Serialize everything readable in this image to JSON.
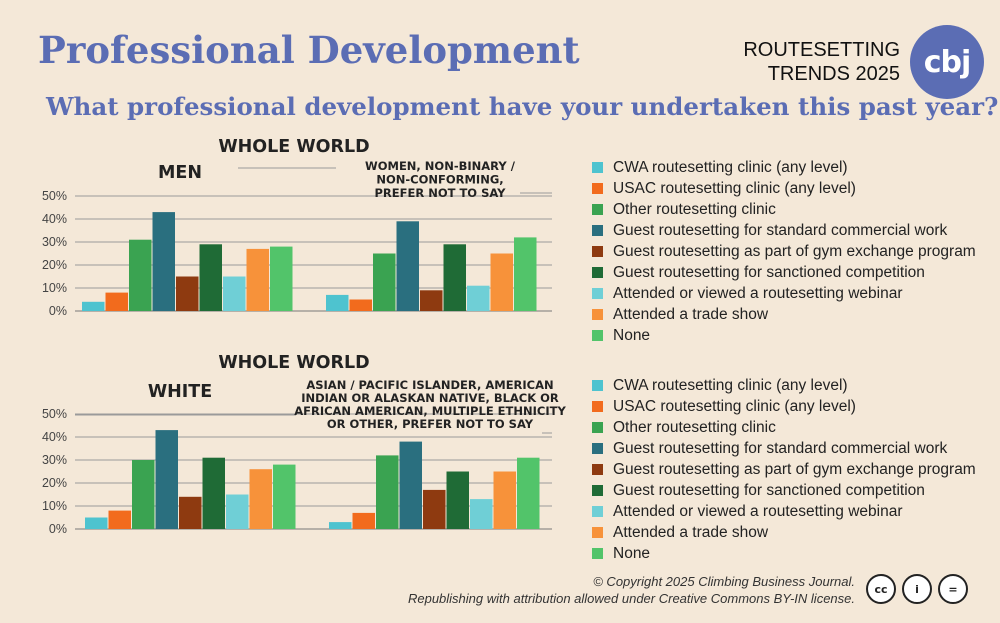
{
  "header": {
    "title": "Professional Development",
    "subtitle": "What professional development have your undertaken this past year?",
    "brand_line1": "ROUTESETTING",
    "brand_line2": "TRENDS 2025",
    "logo_text": "cbj"
  },
  "legend": {
    "items": [
      {
        "label": "CWA routesetting clinic (any level)",
        "color": "#4ec3cf"
      },
      {
        "label": "USAC routesetting clinic (any level)",
        "color": "#f26b1d"
      },
      {
        "label": "Other routesetting clinic",
        "color": "#3aa351"
      },
      {
        "label": "Guest routesetting for standard commercial work",
        "color": "#2a6f7f"
      },
      {
        "label": "Guest routesetting as part of gym exchange program",
        "color": "#8e3a10"
      },
      {
        "label": "Guest routesetting for sanctioned competition",
        "color": "#1f6b36"
      },
      {
        "label": "Attended or viewed a routesetting webinar",
        "color": "#6fcfd6"
      },
      {
        "label": "Attended a trade show",
        "color": "#f7923a"
      },
      {
        "label": "None",
        "color": "#52c46a"
      }
    ]
  },
  "chart_data": [
    {
      "type": "bar",
      "title": "WHOLE WORLD",
      "yticks": [
        "0%",
        "10%",
        "20%",
        "30%",
        "40%",
        "50%"
      ],
      "ylim": [
        0,
        50
      ],
      "categories": [
        "CWA routesetting clinic (any level)",
        "USAC routesetting clinic (any level)",
        "Other routesetting clinic",
        "Guest routesetting for standard commercial work",
        "Guest routesetting as part of gym exchange program",
        "Guest routesetting for sanctioned competition",
        "Attended or viewed a routesetting webinar",
        "Attended a trade show",
        "None"
      ],
      "groups": [
        {
          "label": "MEN",
          "values": [
            4,
            8,
            31,
            43,
            15,
            29,
            15,
            27,
            28
          ]
        },
        {
          "label": "WOMEN, NON-BINARY / NON-CONFORMING, PREFER NOT TO SAY",
          "values": [
            7,
            5,
            25,
            39,
            9,
            29,
            11,
            25,
            32
          ]
        }
      ]
    },
    {
      "type": "bar",
      "title": "WHOLE WORLD",
      "yticks": [
        "0%",
        "10%",
        "20%",
        "30%",
        "40%",
        "50%"
      ],
      "ylim": [
        0,
        50
      ],
      "categories": [
        "CWA routesetting clinic (any level)",
        "USAC routesetting clinic (any level)",
        "Other routesetting clinic",
        "Guest routesetting for standard commercial work",
        "Guest routesetting as part of gym exchange program",
        "Guest routesetting for sanctioned competition",
        "Attended or viewed a routesetting webinar",
        "Attended a trade show",
        "None"
      ],
      "groups": [
        {
          "label": "WHITE",
          "values": [
            5,
            8,
            30,
            43,
            14,
            31,
            15,
            26,
            28
          ]
        },
        {
          "label": "ASIAN / PACIFIC ISLANDER, AMERICAN INDIAN OR ALASKAN NATIVE, BLACK OR AFRICAN AMERICAN, MULTIPLE ETHNICITY OR OTHER, PREFER NOT TO SAY",
          "values": [
            3,
            7,
            32,
            38,
            17,
            25,
            13,
            25,
            31
          ]
        }
      ]
    }
  ],
  "footer": {
    "copyright": "© Copyright 2025 Climbing Business Journal.",
    "license": "Republishing with attribution allowed under Creative Commons BY-IN license.",
    "cc_icons": [
      {
        "name": "cc-icon",
        "text": "cc"
      },
      {
        "name": "attribution-icon",
        "text": "i"
      },
      {
        "name": "no-derivatives-icon",
        "text": "="
      }
    ]
  }
}
